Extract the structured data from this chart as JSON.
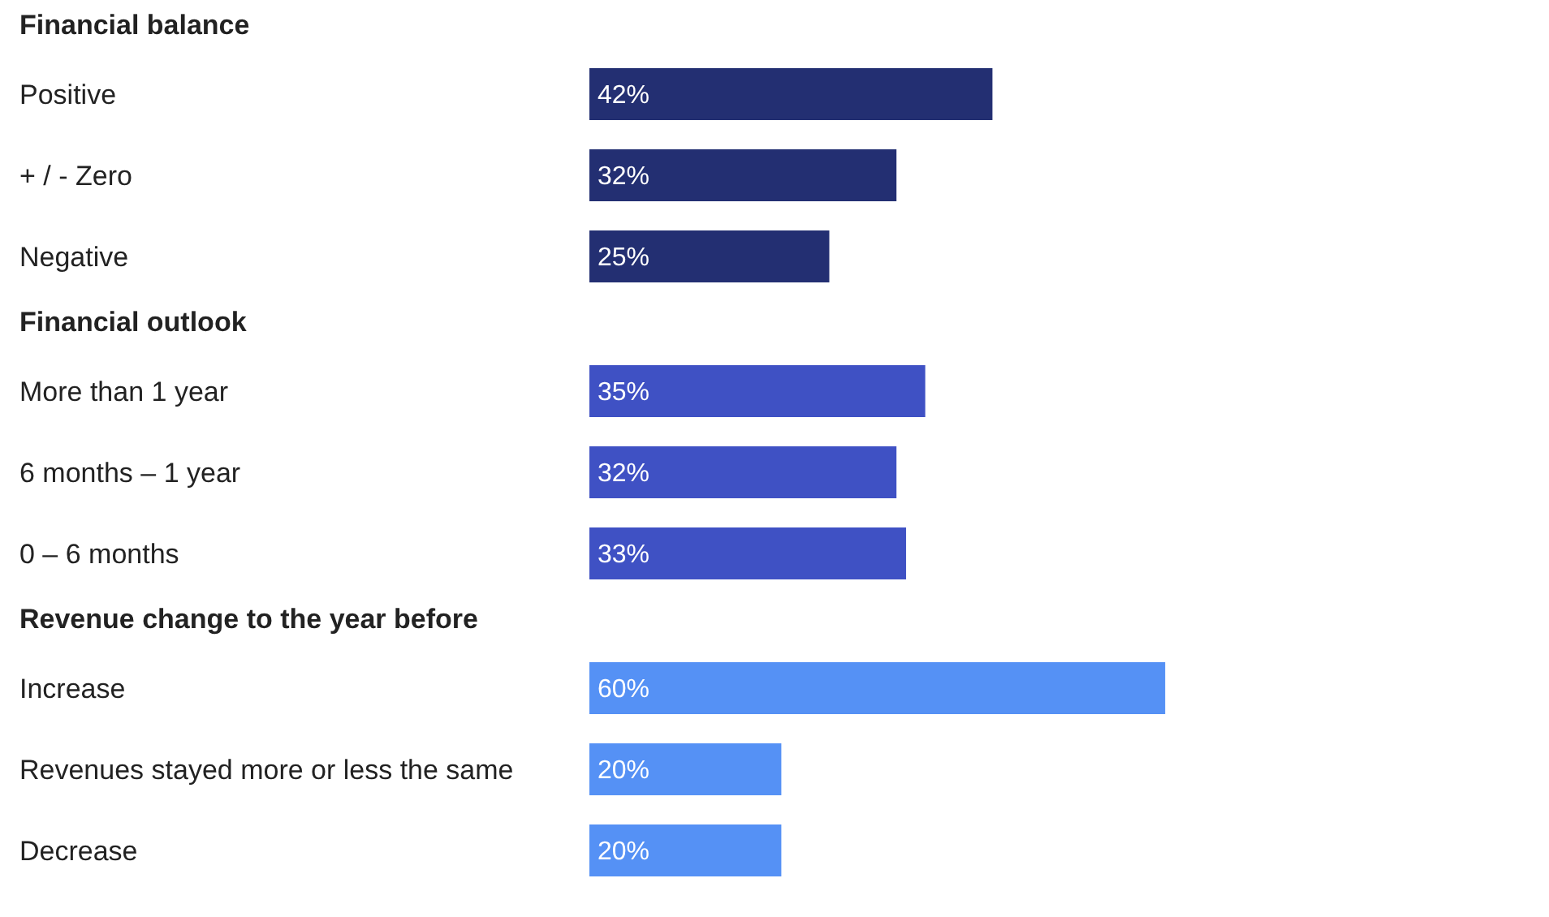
{
  "chart_data": [
    {
      "type": "bar",
      "orientation": "horizontal",
      "title": "Financial balance",
      "categories": [
        "Positive",
        "+ / - Zero",
        "Negative"
      ],
      "values": [
        42,
        32,
        25
      ],
      "value_labels": [
        "42%",
        "32%",
        "25%"
      ],
      "color": "#232f72",
      "xlim": [
        0,
        100
      ],
      "tick_labels": "y"
    },
    {
      "type": "bar",
      "orientation": "horizontal",
      "title": "Financial outlook",
      "categories": [
        "More than 1 year",
        "6 months – 1 year",
        "0 – 6 months"
      ],
      "values": [
        35,
        32,
        33
      ],
      "value_labels": [
        "35%",
        "32%",
        "33%"
      ],
      "color": "#3f51c4",
      "xlim": [
        0,
        100
      ],
      "tick_labels": "y"
    },
    {
      "type": "bar",
      "orientation": "horizontal",
      "title": "Revenue change to the year before",
      "categories": [
        "Increase",
        "Revenues stayed more or less the same",
        "Decrease"
      ],
      "values": [
        60,
        20,
        20
      ],
      "value_labels": [
        "60%",
        "20%",
        "20%"
      ],
      "color": "#5591f5",
      "xlim": [
        0,
        100
      ],
      "tick_labels": "y"
    }
  ]
}
